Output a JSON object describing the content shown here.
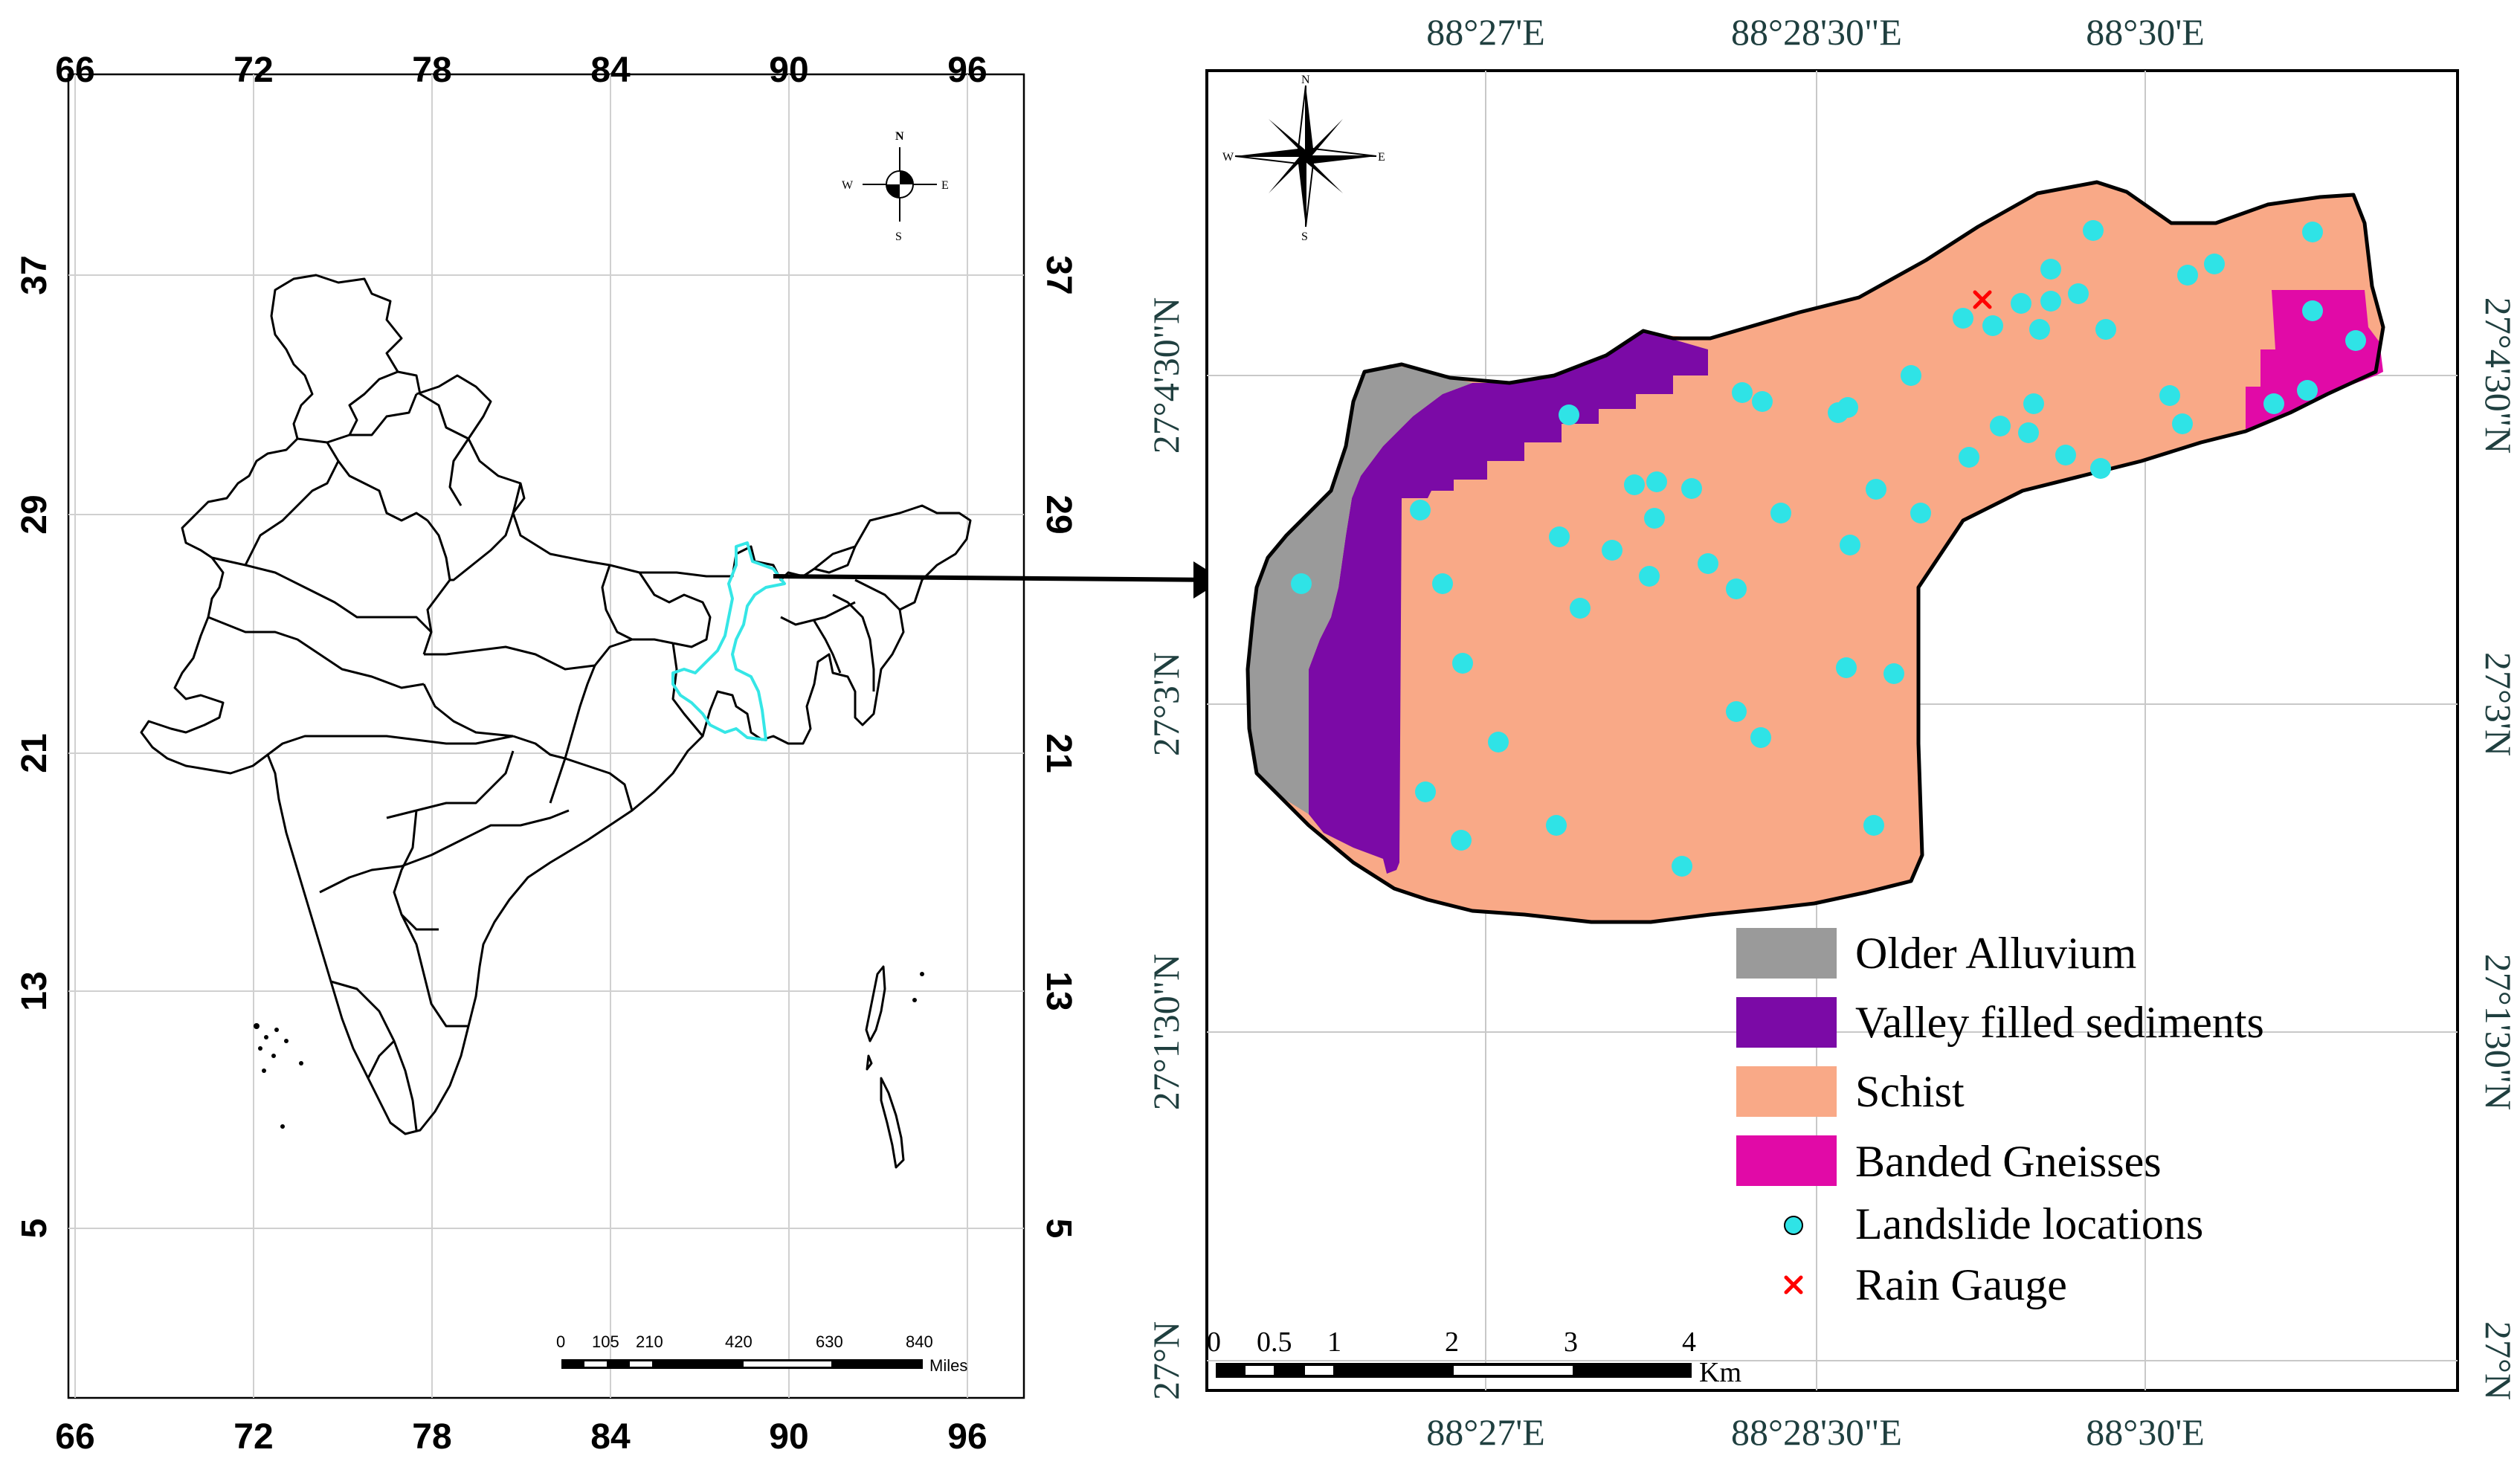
{
  "india_map": {
    "top_ticks": [
      "66",
      "72",
      "78",
      "84",
      "90",
      "96"
    ],
    "bottom_ticks": [
      "66",
      "72",
      "78",
      "84",
      "90",
      "96"
    ],
    "left_ticks": [
      "37",
      "29",
      "21",
      "13",
      "5"
    ],
    "right_ticks": [
      "37",
      "29",
      "21",
      "13",
      "5"
    ],
    "compass": {
      "n": "N",
      "s": "S",
      "e": "E",
      "w": "W"
    },
    "scale_bar": {
      "labels": [
        "0",
        "105",
        "210",
        "420",
        "630",
        "840"
      ],
      "unit": "Miles"
    },
    "highlight_color": "#35e6e6"
  },
  "study_area_map": {
    "top_ticks": [
      "88°27'E",
      "88°28'30\"E",
      "88°30'E"
    ],
    "bottom_ticks": [
      "88°27'E",
      "88°28'30\"E",
      "88°30'E"
    ],
    "left_ticks": [
      "27°4'30\"N",
      "27°3'N",
      "27°1'30\"N",
      "27°N"
    ],
    "right_ticks": [
      "27°4'30\"N",
      "27°3'N",
      "27°1'30\"N",
      "27°N"
    ],
    "compass": {
      "n": "N",
      "s": "S",
      "e": "E",
      "w": "W"
    },
    "scale_bar": {
      "labels": [
        "0",
        "0.5",
        "1",
        "2",
        "3",
        "4"
      ],
      "unit": "Km"
    },
    "legend": [
      {
        "label": "Older Alluvium",
        "color": "#9a9a9a",
        "kind": "swatch"
      },
      {
        "label": "Valley filled sediments",
        "color": "#7b0aa6",
        "kind": "swatch"
      },
      {
        "label": "Schist",
        "color": "#f9a987",
        "kind": "swatch"
      },
      {
        "label": "Banded Gneisses",
        "color": "#e10aa7",
        "kind": "swatch"
      },
      {
        "label": "Landslide locations",
        "color": "#2fe3e6",
        "kind": "dot"
      },
      {
        "label": "Rain Gauge",
        "color": "#ff0000",
        "kind": "cross"
      }
    ]
  }
}
